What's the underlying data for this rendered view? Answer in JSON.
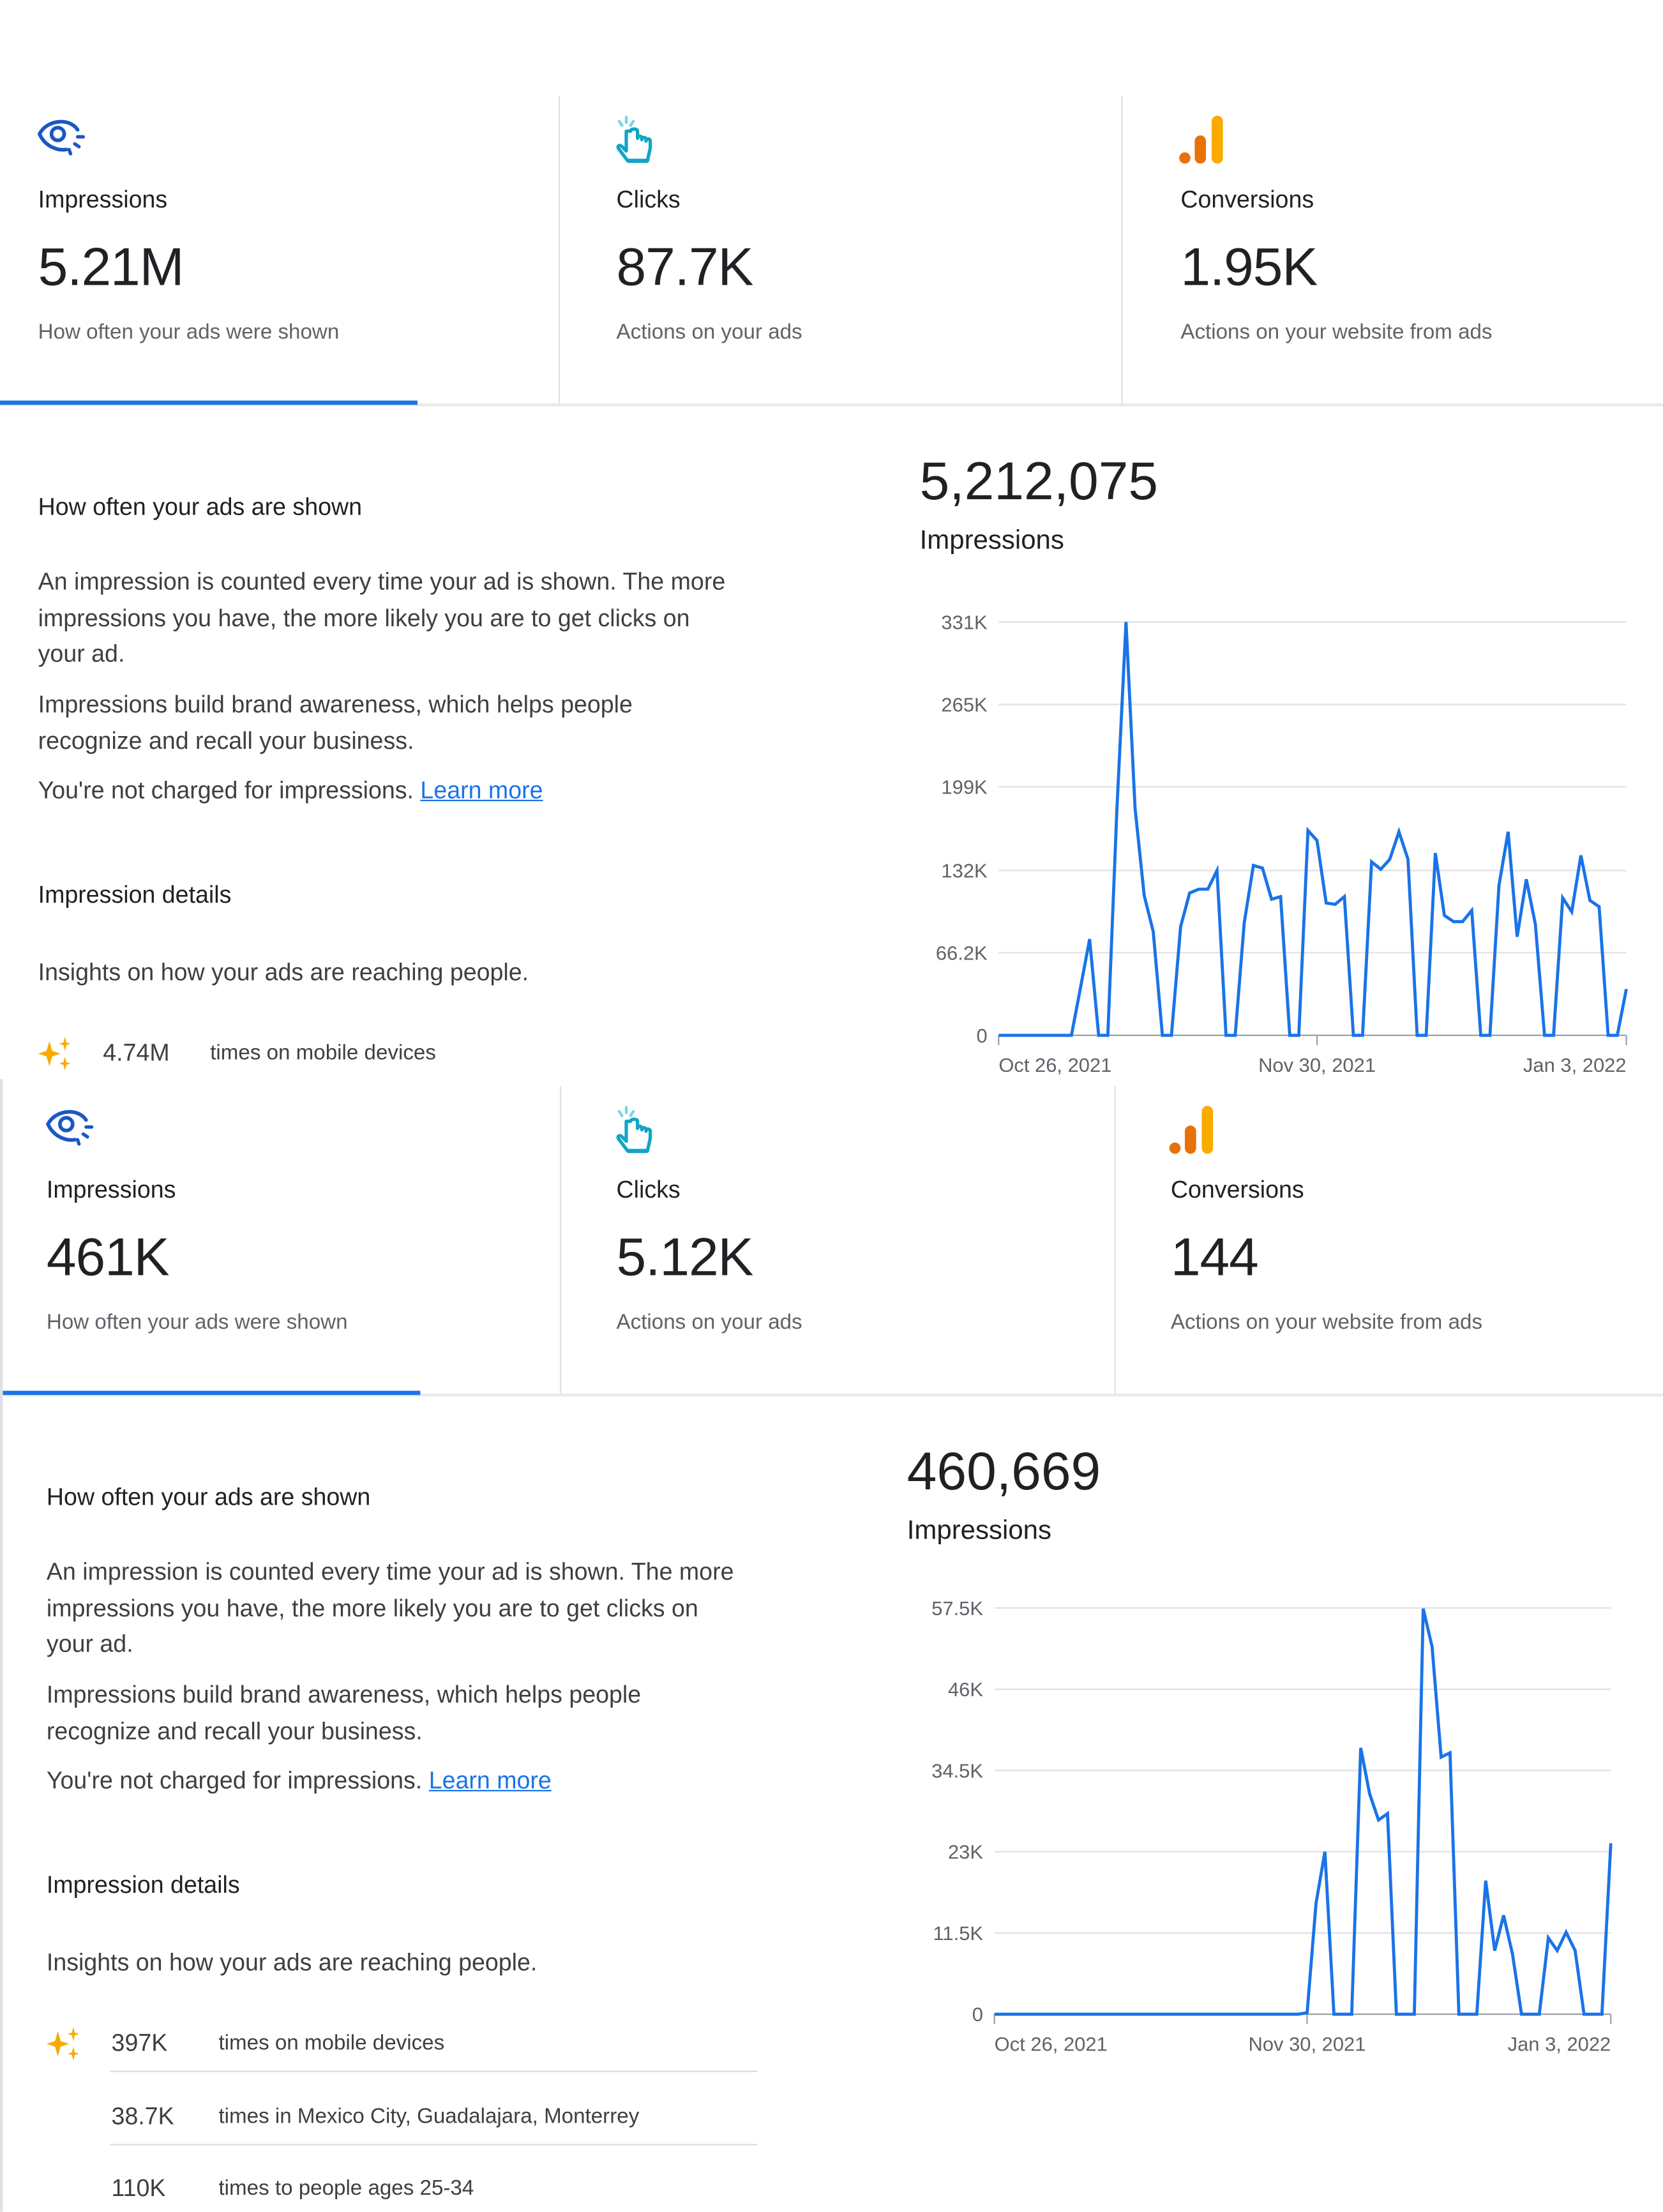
{
  "colors": {
    "accent": "#1a73e8",
    "line": "#1a73e8",
    "eye_icon": "#1a57c4",
    "click_icon": "#12a4c4",
    "bar_icon_short": "#e8710a",
    "bar_icon_tall": "#f9ab00",
    "sparkle": "#f9ab00"
  },
  "panels": [
    {
      "cards": [
        {
          "icon": "eye-icon",
          "label": "Impressions",
          "value": "5.21M",
          "desc": "How often your ads were shown",
          "selected": true
        },
        {
          "icon": "click-hand-icon",
          "label": "Clicks",
          "value": "87.7K",
          "desc": "Actions on your ads",
          "selected": false
        },
        {
          "icon": "bar-chart-icon",
          "label": "Conversions",
          "value": "1.95K",
          "desc": "Actions on your website from ads",
          "selected": false
        }
      ],
      "heading": "How often your ads are shown",
      "para1": "An impression is counted every time your ad is shown. The more impressions you have, the more likely you are to get clicks on your ad.",
      "para2": "Impressions build brand awareness, which helps people recognize and recall your business.",
      "para3": "You're not charged for impressions.",
      "learn_more": "Learn more",
      "details_heading": "Impression details",
      "details_sub": "Insights on how your ads are reaching people.",
      "details": [
        {
          "icon": "sparkle-icon",
          "value": "4.74M",
          "text": "times on mobile devices"
        }
      ],
      "total": "5,212,075",
      "total_label": "Impressions"
    },
    {
      "cards": [
        {
          "icon": "eye-icon",
          "label": "Impressions",
          "value": "461K",
          "desc": "How often your ads were shown",
          "selected": true
        },
        {
          "icon": "click-hand-icon",
          "label": "Clicks",
          "value": "5.12K",
          "desc": "Actions on your ads",
          "selected": false
        },
        {
          "icon": "bar-chart-icon",
          "label": "Conversions",
          "value": "144",
          "desc": "Actions on your website from ads",
          "selected": false
        }
      ],
      "heading": "How often your ads are shown",
      "para1": "An impression is counted every time your ad is shown. The more impressions you have, the more likely you are to get clicks on your ad.",
      "para2": "Impressions build brand awareness, which helps people recognize and recall your business.",
      "para3": "You're not charged for impressions.",
      "learn_more": "Learn more",
      "details_heading": "Impression details",
      "details_sub": "Insights on how your ads are reaching people.",
      "details": [
        {
          "icon": "sparkle-icon",
          "value": "397K",
          "text": "times on mobile devices"
        },
        {
          "icon": "",
          "value": "38.7K",
          "text": "times in Mexico City, Guadalajara, Monterrey"
        },
        {
          "icon": "",
          "value": "110K",
          "text": "times to people ages 25-34"
        }
      ],
      "total": "460,669",
      "total_label": "Impressions"
    }
  ],
  "chart_data": [
    {
      "type": "line",
      "x_start": "2021-10-26",
      "x_end": "2022-01-03",
      "x_interval": "daily",
      "xticks": [
        "Oct 26, 2021",
        "Nov 30, 2021",
        "Jan 3, 2022"
      ],
      "yticks": [
        "0",
        "66.2K",
        "132K",
        "199K",
        "265K",
        "331K"
      ],
      "ytick_values": [
        0,
        66.2,
        132,
        199,
        265,
        331
      ],
      "ylim": [
        0,
        331
      ],
      "y_unit": "K",
      "grid": true,
      "values": [
        0,
        0,
        0,
        0,
        0,
        0,
        0,
        0,
        0,
        38,
        77,
        0,
        0,
        180,
        331,
        182,
        112,
        83,
        0,
        0,
        87,
        114,
        117,
        117,
        132,
        0,
        0,
        90,
        136,
        134,
        109,
        111,
        0,
        0,
        164,
        156,
        106,
        105,
        111,
        0,
        0,
        139,
        133,
        141,
        163,
        141,
        0,
        0,
        146,
        96,
        91,
        91,
        100,
        0,
        0,
        120,
        163,
        79,
        125,
        89,
        0,
        0,
        110,
        99,
        144,
        108,
        103,
        0,
        0,
        37
      ]
    },
    {
      "type": "line",
      "x_start": "2021-10-26",
      "x_end": "2022-01-03",
      "x_interval": "daily",
      "xticks": [
        "Oct 26, 2021",
        "Nov 30, 2021",
        "Jan 3, 2022"
      ],
      "yticks": [
        "0",
        "11.5K",
        "23K",
        "34.5K",
        "46K",
        "57.5K"
      ],
      "ytick_values": [
        0,
        11.5,
        23,
        34.5,
        46,
        57.5
      ],
      "ylim": [
        0,
        57.5
      ],
      "y_unit": "K",
      "grid": true,
      "values": [
        0,
        0,
        0,
        0,
        0,
        0,
        0,
        0,
        0,
        0,
        0,
        0,
        0,
        0,
        0,
        0,
        0,
        0,
        0,
        0,
        0,
        0,
        0,
        0,
        0,
        0,
        0,
        0,
        0,
        0,
        0,
        0,
        0,
        0,
        0,
        0.2,
        15.7,
        23,
        0,
        0,
        0,
        37.7,
        31.2,
        27.5,
        28.4,
        0,
        0,
        0,
        57.4,
        52,
        36.4,
        37,
        0,
        0,
        0,
        18.9,
        9,
        14,
        8.5,
        0,
        0,
        0,
        10.8,
        9,
        11.6,
        9,
        0,
        0,
        0,
        24.2
      ]
    }
  ]
}
